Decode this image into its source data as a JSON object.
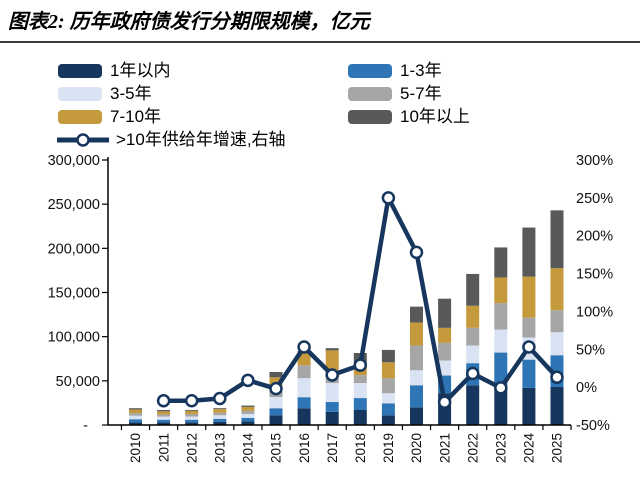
{
  "title": "图表2: 历年政府债发行分期限规模，亿元",
  "chart_data": {
    "type": "bar",
    "stacked": true,
    "line_overlay": true,
    "unit": "亿元",
    "categories": [
      "2010",
      "2011",
      "2012",
      "2013",
      "2014",
      "2015",
      "2016",
      "2017",
      "2018",
      "2019",
      "2020",
      "2021",
      "2022",
      "2023",
      "2024",
      "2025"
    ],
    "series": [
      {
        "name": "1年以内",
        "color": "#17365D",
        "values": [
          3000,
          3000,
          3000,
          3500,
          4000,
          11000,
          19000,
          15000,
          17000,
          11000,
          20000,
          36000,
          45000,
          42000,
          42000,
          43000
        ]
      },
      {
        "name": "1-3年",
        "color": "#2E75B6",
        "values": [
          3500,
          3000,
          3000,
          3500,
          4000,
          8000,
          12500,
          11000,
          13500,
          13500,
          25000,
          20000,
          25000,
          40000,
          32000,
          36000
        ]
      },
      {
        "name": "3-5年",
        "color": "#DAE3F3",
        "values": [
          4000,
          3500,
          3500,
          4000,
          4500,
          12500,
          21500,
          21500,
          17000,
          11500,
          17000,
          17000,
          20000,
          26000,
          25000,
          26000
        ]
      },
      {
        "name": "5-7年",
        "color": "#A6A6A6",
        "values": [
          3000,
          2500,
          3000,
          3000,
          3500,
          10000,
          14500,
          14500,
          9000,
          17000,
          28000,
          20000,
          20000,
          30000,
          22500,
          25000
        ]
      },
      {
        "name": "7-10年",
        "color": "#C49A3C",
        "values": [
          4000,
          3500,
          3500,
          4000,
          4500,
          12500,
          14500,
          22500,
          11500,
          18000,
          26000,
          17000,
          25000,
          29000,
          46500,
          47500
        ]
      },
      {
        "name": "10年以上",
        "color": "#595959",
        "values": [
          1500,
          1500,
          1000,
          1000,
          1500,
          6000,
          2000,
          2500,
          13500,
          14000,
          18000,
          33000,
          36000,
          34000,
          55500,
          65500
        ]
      }
    ],
    "line_series": {
      "name": ">10年供给年增速,右轴",
      "color": "#17365D",
      "axis": "right",
      "values": [
        null,
        -18,
        -18,
        -15,
        9,
        -2,
        53,
        16,
        29,
        250,
        178,
        -20,
        18,
        -1,
        53,
        13
      ]
    },
    "left_axis": {
      "min": 0,
      "max": 300000,
      "tick_labels": [
        "-",
        "50,000",
        "100,000",
        "150,000",
        "200,000",
        "250,000",
        "300,000"
      ]
    },
    "right_axis": {
      "min": -50,
      "max": 300,
      "tick_labels": [
        "-50%",
        "0%",
        "50%",
        "100%",
        "150%",
        "200%",
        "250%",
        "300%"
      ]
    },
    "grid": false,
    "legend_position": "top"
  }
}
